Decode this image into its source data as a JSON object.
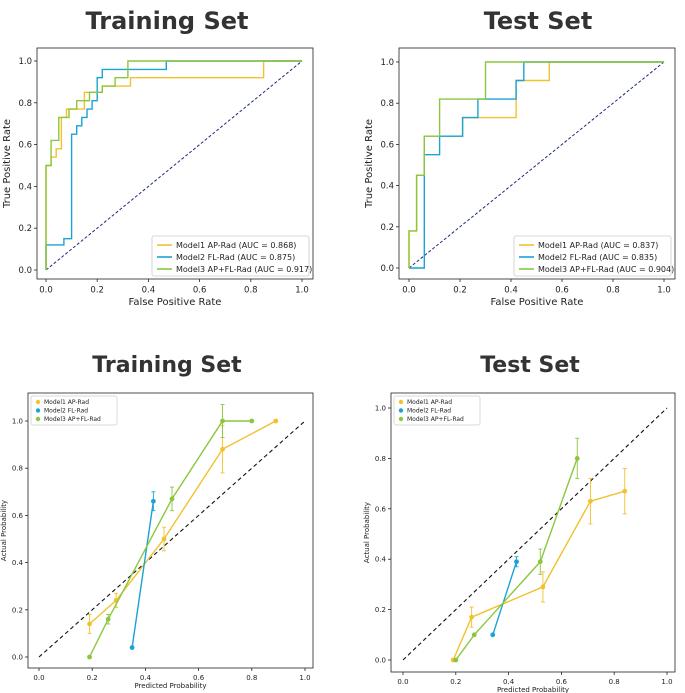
{
  "chart_data": [
    {
      "type": "line",
      "kind": "roc",
      "title": "Training Set",
      "xlabel": "False Positive Rate",
      "ylabel": "True Positive Rate",
      "xlim": [
        0,
        1
      ],
      "ylim": [
        0,
        1
      ],
      "xticks": [
        "0.0",
        "0.2",
        "0.4",
        "0.6",
        "0.8",
        "1.0"
      ],
      "yticks": [
        "0.0",
        "0.2",
        "0.4",
        "0.6",
        "0.8",
        "1.0"
      ],
      "legend": "bottom-right",
      "series": [
        {
          "name": "Model1 AP-Rad (AUC = 0.868)",
          "color": "#f2c12e",
          "x": [
            0,
            0,
            0.02,
            0.02,
            0.04,
            0.04,
            0.06,
            0.06,
            0.08,
            0.08,
            0.15,
            0.15,
            0.22,
            0.22,
            0.33,
            0.33,
            0.85,
            0.85,
            1.0
          ],
          "y": [
            0,
            0.5,
            0.5,
            0.54,
            0.54,
            0.58,
            0.58,
            0.73,
            0.73,
            0.77,
            0.77,
            0.85,
            0.85,
            0.88,
            0.88,
            0.92,
            0.92,
            1.0,
            1.0
          ]
        },
        {
          "name": "Model2 FL-Rad (AUC = 0.875)",
          "color": "#1aa3d4",
          "x": [
            0,
            0,
            0.02,
            0.02,
            0.07,
            0.07,
            0.1,
            0.1,
            0.12,
            0.12,
            0.14,
            0.14,
            0.16,
            0.16,
            0.18,
            0.18,
            0.2,
            0.2,
            0.22,
            0.22,
            0.47,
            0.47,
            0.73,
            0.73,
            1.0
          ],
          "y": [
            0,
            0.12,
            0.12,
            0.12,
            0.12,
            0.15,
            0.15,
            0.65,
            0.65,
            0.69,
            0.69,
            0.73,
            0.73,
            0.77,
            0.77,
            0.81,
            0.81,
            0.92,
            0.92,
            0.96,
            0.96,
            1.0,
            1.0,
            1.0,
            1.0
          ]
        },
        {
          "name": "Model3 AP+FL-Rad (AUC = 0.917)",
          "color": "#8cc63f",
          "x": [
            0,
            0,
            0.02,
            0.02,
            0.05,
            0.05,
            0.09,
            0.09,
            0.12,
            0.12,
            0.17,
            0.17,
            0.22,
            0.22,
            0.27,
            0.27,
            0.32,
            0.32,
            1.0
          ],
          "y": [
            0,
            0.5,
            0.5,
            0.62,
            0.62,
            0.73,
            0.73,
            0.77,
            0.77,
            0.81,
            0.81,
            0.85,
            0.85,
            0.88,
            0.88,
            0.92,
            0.92,
            1.0,
            1.0
          ]
        }
      ]
    },
    {
      "type": "line",
      "kind": "roc",
      "title": "Test Set",
      "xlabel": "False Positive Rate",
      "ylabel": "True Positive Rate",
      "xlim": [
        0,
        1
      ],
      "ylim": [
        0,
        1
      ],
      "xticks": [
        "0.0",
        "0.2",
        "0.4",
        "0.6",
        "0.8",
        "1.0"
      ],
      "yticks": [
        "0.0",
        "0.2",
        "0.4",
        "0.6",
        "0.8",
        "1.0"
      ],
      "legend": "bottom-right",
      "series": [
        {
          "name": "Model1 AP-Rad (AUC = 0.837)",
          "color": "#f2c12e",
          "x": [
            0,
            0,
            0.03,
            0.03,
            0.06,
            0.06,
            0.12,
            0.12,
            0.21,
            0.21,
            0.42,
            0.42,
            0.55,
            0.55,
            1.0
          ],
          "y": [
            0,
            0.18,
            0.18,
            0.45,
            0.45,
            0.64,
            0.64,
            0.64,
            0.64,
            0.73,
            0.73,
            0.91,
            0.91,
            1.0,
            1.0
          ]
        },
        {
          "name": "Model2 FL-Rad (AUC = 0.835)",
          "color": "#1aa3d4",
          "x": [
            0,
            0.06,
            0.06,
            0.12,
            0.12,
            0.21,
            0.21,
            0.27,
            0.27,
            0.42,
            0.42,
            0.45,
            0.45,
            1.0
          ],
          "y": [
            0,
            0,
            0.55,
            0.55,
            0.64,
            0.64,
            0.73,
            0.73,
            0.82,
            0.82,
            0.91,
            0.91,
            1.0,
            1.0
          ]
        },
        {
          "name": "Model3 AP+FL-Rad (AUC = 0.904)",
          "color": "#8cc63f",
          "x": [
            0,
            0,
            0.03,
            0.03,
            0.06,
            0.06,
            0.12,
            0.12,
            0.3,
            0.3,
            1.0
          ],
          "y": [
            0,
            0.18,
            0.18,
            0.45,
            0.45,
            0.64,
            0.64,
            0.82,
            0.82,
            1.0,
            1.0
          ]
        }
      ]
    },
    {
      "type": "line",
      "kind": "calibration",
      "title": "Training Set",
      "xlabel": "Predicted Probability",
      "ylabel": "Actual Probability",
      "xlim": [
        0,
        1
      ],
      "ylim": [
        0,
        1
      ],
      "xticks": [
        "0.0",
        "0.2",
        "0.4",
        "0.6",
        "0.8",
        "1.0"
      ],
      "yticks": [
        "0.0",
        "0.2",
        "0.4",
        "0.6",
        "0.8",
        "1.0"
      ],
      "legend": "top-left",
      "series": [
        {
          "name": "Model1 AP-Rad",
          "color": "#f2c12e",
          "x": [
            0.19,
            0.29,
            0.47,
            0.69,
            0.89
          ],
          "y": [
            0.14,
            0.24,
            0.5,
            0.88,
            1.0
          ],
          "err": [
            0.04,
            0.03,
            0.05,
            0.1,
            0
          ]
        },
        {
          "name": "Model2 FL-Rad",
          "color": "#1aa3d4",
          "x": [
            0.35,
            0.43
          ],
          "y": [
            0.04,
            0.66
          ],
          "err": [
            0,
            0.04
          ]
        },
        {
          "name": "Model3 AP+FL-Rad",
          "color": "#8cc63f",
          "x": [
            0.19,
            0.26,
            0.5,
            0.69,
            0.8
          ],
          "y": [
            0.0,
            0.16,
            0.67,
            1.0,
            1.0
          ],
          "err": [
            0,
            0.02,
            0.05,
            0.07,
            0
          ]
        }
      ]
    },
    {
      "type": "line",
      "kind": "calibration",
      "title": "Test Set",
      "xlabel": "Predicted Probability",
      "ylabel": "Actual Probability",
      "xlim": [
        0,
        1
      ],
      "ylim": [
        0,
        1
      ],
      "xticks": [
        "0.0",
        "0.2",
        "0.4",
        "0.6",
        "0.8",
        "1.0"
      ],
      "yticks": [
        "0.0",
        "0.2",
        "0.4",
        "0.6",
        "0.8",
        "1.0"
      ],
      "legend": "top-left",
      "series": [
        {
          "name": "Model1 AP-Rad",
          "color": "#f2c12e",
          "x": [
            0.19,
            0.26,
            0.53,
            0.71,
            0.84
          ],
          "y": [
            0.0,
            0.17,
            0.29,
            0.63,
            0.67
          ],
          "err": [
            0,
            0.04,
            0.06,
            0.09,
            0.09
          ]
        },
        {
          "name": "Model2 FL-Rad",
          "color": "#1aa3d4",
          "x": [
            0.34,
            0.43
          ],
          "y": [
            0.1,
            0.39
          ],
          "err": [
            0,
            0.02
          ]
        },
        {
          "name": "Model3 AP+FL-Rad",
          "color": "#8cc63f",
          "x": [
            0.2,
            0.27,
            0.52,
            0.66
          ],
          "y": [
            0.0,
            0.1,
            0.39,
            0.8
          ],
          "err": [
            0,
            0,
            0.05,
            0.08
          ]
        }
      ]
    }
  ]
}
